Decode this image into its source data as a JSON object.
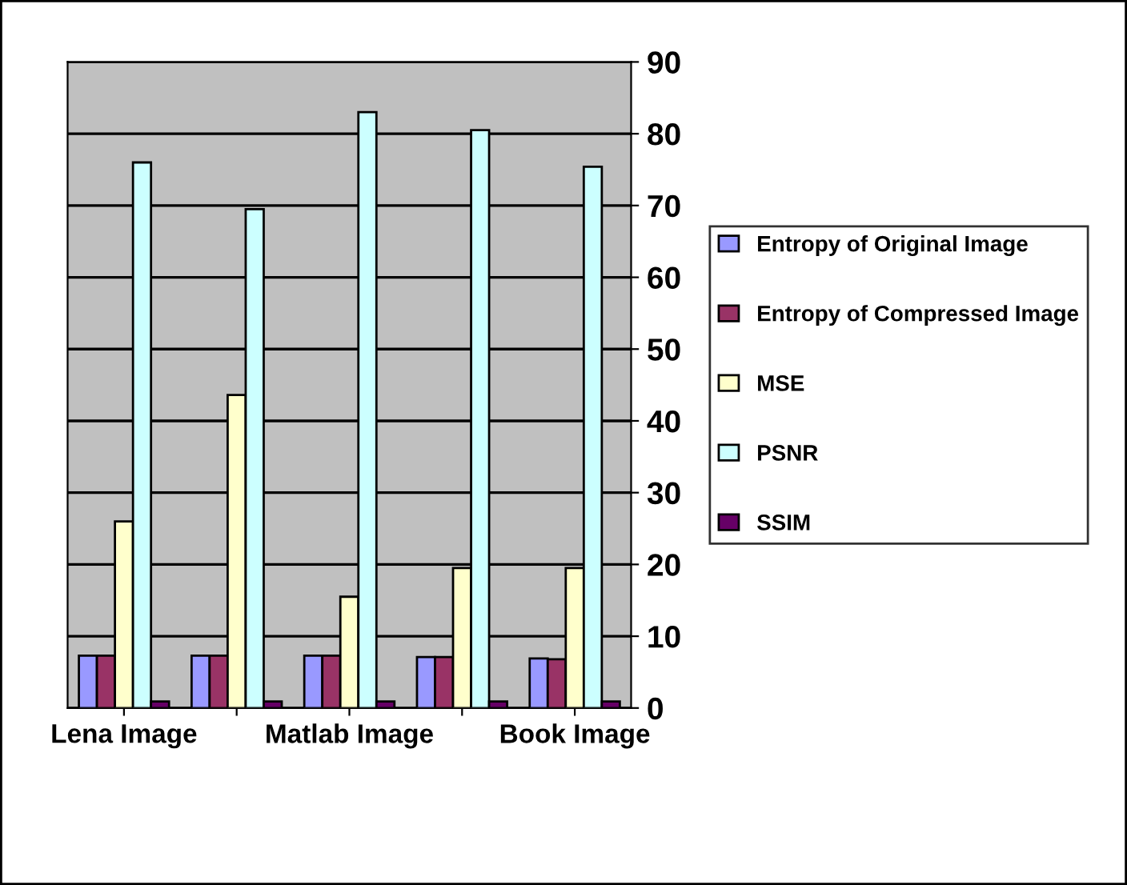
{
  "chart_data": {
    "type": "bar",
    "categories": [
      "Lena Image",
      null,
      "Matlab Image",
      null,
      "Book Image"
    ],
    "series": [
      {
        "name": "Entropy of Original Image",
        "color": "#9999ff",
        "values": [
          7.3,
          7.3,
          7.3,
          7.1,
          6.9
        ]
      },
      {
        "name": "Entropy of Compressed Image",
        "color": "#993366",
        "values": [
          7.3,
          7.3,
          7.3,
          7.1,
          6.8
        ]
      },
      {
        "name": "MSE",
        "color": "#ffffcc",
        "values": [
          26,
          43.6,
          15.5,
          19.5,
          19.5
        ]
      },
      {
        "name": "PSNR",
        "color": "#ccffff",
        "values": [
          76,
          69.5,
          83,
          80.5,
          75.4
        ]
      },
      {
        "name": "SSIM",
        "color": "#660066",
        "values": [
          0.9,
          0.9,
          0.9,
          0.9,
          0.9
        ]
      }
    ],
    "ylim": [
      0,
      90
    ],
    "yticks": [
      0,
      10,
      20,
      30,
      40,
      50,
      60,
      70,
      80,
      90
    ],
    "grid": "y",
    "legend": "right"
  }
}
